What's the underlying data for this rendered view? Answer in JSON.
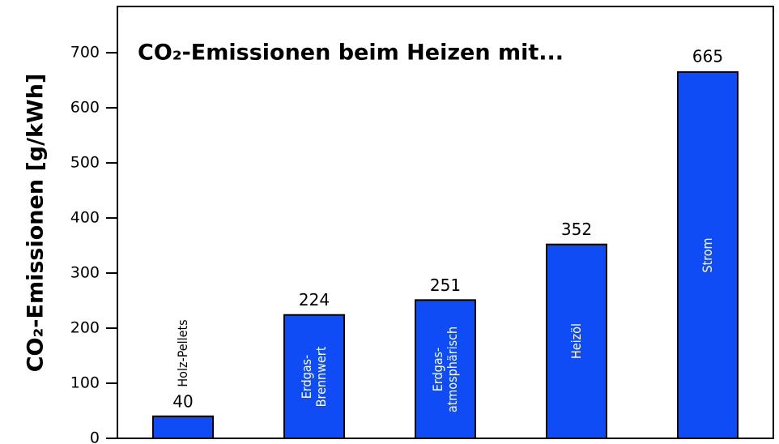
{
  "chart_data": {
    "type": "bar",
    "title": "CO₂-Emissionen beim Heizen mit...",
    "y_label": "CO₂-Emissionen [g/kWh]",
    "categories": [
      "Holz-Pellets",
      "Erdgas-\nBrennwert",
      "Erdgas-\natmosphärisch",
      "Heizöl",
      "Strom"
    ],
    "values": [
      40,
      224,
      251,
      352,
      665
    ],
    "color": "#0f4cf5",
    "ylim": [
      0,
      784
    ],
    "yticks": [
      0,
      100,
      200,
      300,
      400,
      500,
      600,
      700
    ],
    "grid": false
  }
}
